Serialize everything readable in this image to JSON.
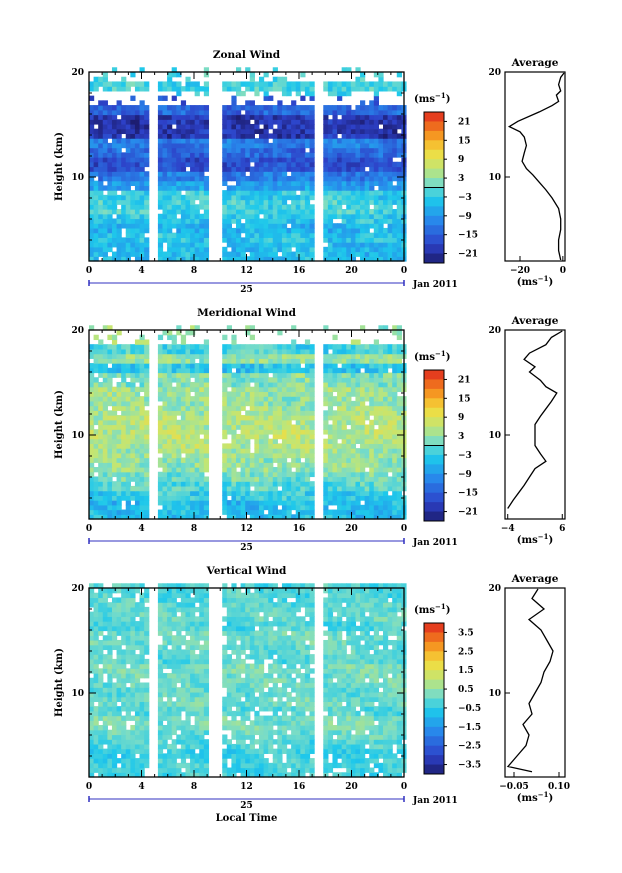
{
  "chart_data": [
    {
      "type": "heatmap",
      "title": "Zonal Wind",
      "ylabel": "Height (km)",
      "y_ticks": [
        "20",
        "10"
      ],
      "x_ticks": [
        "0",
        "4",
        "8",
        "12",
        "16",
        "20",
        "0"
      ],
      "date_label": "25",
      "month_label": "Jan 2011",
      "unit_label": "(ms",
      "unit_exp": "−1",
      "colorbar_ticks": [
        "21",
        "15",
        "9",
        "3",
        "−3",
        "−9",
        "−15",
        "−21"
      ],
      "xlim": [
        0,
        24
      ],
      "ylim": [
        2,
        20
      ],
      "gaps_local_time": [
        [
          4.6,
          5.2
        ],
        [
          9.3,
          9.8
        ],
        [
          17.3,
          17.8
        ]
      ],
      "average": {
        "title": "Average",
        "x_ticks": [
          "−20",
          "0"
        ],
        "xlabel": "(ms",
        "xlabel_exp": "−1",
        "y_ticks": [
          "20",
          "10"
        ],
        "xlim": [
          -27,
          1
        ],
        "profile": [
          [
            1,
            20
          ],
          [
            -1,
            19.5
          ],
          [
            -2,
            18.8
          ],
          [
            -1,
            18.2
          ],
          [
            -3,
            17.8
          ],
          [
            -2,
            17.2
          ],
          [
            -5,
            16.8
          ],
          [
            -11,
            16.2
          ],
          [
            -21,
            15.3
          ],
          [
            -25,
            14.8
          ],
          [
            -20,
            14.3
          ],
          [
            -18,
            13.8
          ],
          [
            -17,
            13
          ],
          [
            -18,
            12.3
          ],
          [
            -19,
            11.5
          ],
          [
            -17,
            10.8
          ],
          [
            -14,
            10.2
          ],
          [
            -11,
            9.5
          ],
          [
            -8,
            8.8
          ],
          [
            -5,
            8
          ],
          [
            -2,
            7
          ],
          [
            -1,
            6
          ],
          [
            -1,
            5
          ],
          [
            -2,
            4
          ],
          [
            -2,
            3
          ],
          [
            -1,
            2
          ]
        ]
      },
      "series": [
        {
          "vmin": -24,
          "vmax": 24,
          "cells": [
            [
              -2,
              19
            ],
            [
              -2,
              18
            ],
            [
              -16,
              17
            ],
            [
              -14,
              16
            ],
            [
              -20,
              15
            ],
            [
              -20,
              14
            ],
            [
              -12,
              13
            ],
            [
              -14,
              12
            ],
            [
              -17,
              11
            ],
            [
              -12,
              10
            ],
            [
              -8,
              9
            ],
            [
              -3,
              8
            ],
            [
              -2,
              7
            ],
            [
              -4,
              6
            ],
            [
              -6,
              5
            ],
            [
              -4,
              4
            ],
            [
              -5,
              3
            ]
          ],
          "blanks": [
            [
              16.5,
              18
            ],
            [
              19,
              20
            ]
          ]
        }
      ]
    },
    {
      "type": "heatmap",
      "title": "Meridional Wind",
      "ylabel": "Height (km)",
      "y_ticks": [
        "20",
        "10"
      ],
      "x_ticks": [
        "0",
        "4",
        "8",
        "12",
        "16",
        "20",
        "0"
      ],
      "date_label": "25",
      "month_label": "Jan 2011",
      "unit_label": "(ms",
      "unit_exp": "−1",
      "colorbar_ticks": [
        "21",
        "15",
        "9",
        "3",
        "−3",
        "−9",
        "−15",
        "−21"
      ],
      "xlim": [
        0,
        24
      ],
      "ylim": [
        2,
        20
      ],
      "gaps_local_time": [
        [
          4.6,
          5.2
        ],
        [
          9.3,
          9.8
        ],
        [
          17.3,
          17.8
        ]
      ],
      "average": {
        "title": "Average",
        "x_ticks": [
          "−4",
          "6"
        ],
        "xlabel": "(ms",
        "xlabel_exp": "−1",
        "y_ticks": [
          "20",
          "10"
        ],
        "xlim": [
          -4.5,
          6.5
        ],
        "profile": [
          [
            6,
            20
          ],
          [
            4,
            19.3
          ],
          [
            3,
            18.6
          ],
          [
            0,
            17.8
          ],
          [
            -1,
            17.2
          ],
          [
            1,
            16.5
          ],
          [
            0,
            16
          ],
          [
            2,
            15.2
          ],
          [
            3,
            14.6
          ],
          [
            5,
            14
          ],
          [
            4,
            13.2
          ],
          [
            3,
            12.5
          ],
          [
            2,
            11.8
          ],
          [
            1,
            11
          ],
          [
            1,
            10
          ],
          [
            1,
            9
          ],
          [
            2,
            8.2
          ],
          [
            3,
            7.5
          ],
          [
            1,
            6.8
          ],
          [
            0,
            6
          ],
          [
            -1,
            5.2
          ],
          [
            -2,
            4.5
          ],
          [
            -3,
            3.8
          ],
          [
            -4,
            3
          ]
        ]
      },
      "series": [
        {
          "vmin": -24,
          "vmax": 24,
          "cells": [
            [
              3,
              19
            ],
            [
              -2,
              18
            ],
            [
              3,
              17
            ],
            [
              -4,
              16
            ],
            [
              2,
              15
            ],
            [
              4,
              14
            ],
            [
              3,
              13
            ],
            [
              4,
              12
            ],
            [
              5,
              11
            ],
            [
              6,
              10
            ],
            [
              5,
              9
            ],
            [
              4,
              8
            ],
            [
              3,
              7
            ],
            [
              1,
              6
            ],
            [
              -1,
              5
            ],
            [
              -3,
              4
            ],
            [
              -5,
              3
            ]
          ],
          "blanks": [
            [
              18.5,
              20
            ]
          ]
        }
      ]
    },
    {
      "type": "heatmap",
      "title": "Vertical Wind",
      "ylabel": "Height (km)",
      "xlabel": "Local Time",
      "y_ticks": [
        "20",
        "10"
      ],
      "x_ticks": [
        "0",
        "4",
        "8",
        "12",
        "16",
        "20",
        "0"
      ],
      "date_label": "25",
      "month_label": "Jan 2011",
      "unit_label": "(ms",
      "unit_exp": "−1",
      "colorbar_ticks": [
        "3.5",
        "2.5",
        "1.5",
        "0.5",
        "−0.5",
        "−1.5",
        "−2.5",
        "−3.5"
      ],
      "xlim": [
        0,
        24
      ],
      "ylim": [
        2,
        20
      ],
      "gaps_local_time": [
        [
          4.6,
          5.2
        ],
        [
          9.3,
          9.8
        ],
        [
          17.3,
          17.8
        ]
      ],
      "average": {
        "title": "Average",
        "x_ticks": [
          "−0.05",
          "0.10"
        ],
        "xlabel": "(ms",
        "xlabel_exp": "−1",
        "y_ticks": [
          "20",
          "10"
        ],
        "xlim": [
          -0.08,
          0.12
        ],
        "profile": [
          [
            0.03,
            20
          ],
          [
            0.01,
            19
          ],
          [
            0.05,
            18
          ],
          [
            0.0,
            17
          ],
          [
            0.04,
            16
          ],
          [
            0.06,
            15
          ],
          [
            0.08,
            14
          ],
          [
            0.07,
            13
          ],
          [
            0.05,
            12
          ],
          [
            0.04,
            11
          ],
          [
            0.02,
            10
          ],
          [
            0.0,
            9
          ],
          [
            0.01,
            8
          ],
          [
            -0.02,
            7
          ],
          [
            0.0,
            6
          ],
          [
            -0.01,
            5
          ],
          [
            -0.04,
            4
          ],
          [
            -0.07,
            3
          ],
          [
            0.01,
            2.5
          ]
        ]
      },
      "series": [
        {
          "vmin": -4,
          "vmax": 4,
          "cells": [
            [
              -0.2,
              19
            ],
            [
              -0.1,
              18
            ],
            [
              0.0,
              17
            ],
            [
              -0.2,
              16
            ],
            [
              0.1,
              15
            ],
            [
              0.0,
              14
            ],
            [
              -0.1,
              13
            ],
            [
              0.2,
              12
            ],
            [
              0.1,
              11
            ],
            [
              0.0,
              10
            ],
            [
              0.1,
              9
            ],
            [
              -0.1,
              8
            ],
            [
              0.2,
              7
            ],
            [
              0.0,
              6
            ],
            [
              -0.2,
              5
            ],
            [
              -0.4,
              4
            ],
            [
              -0.3,
              3
            ]
          ],
          "blanks": []
        }
      ]
    }
  ]
}
